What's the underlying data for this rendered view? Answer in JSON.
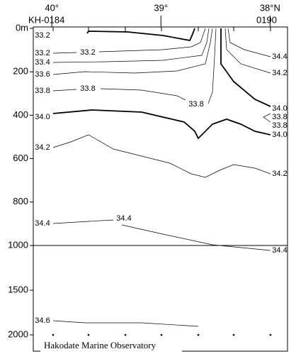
{
  "chart_data": {
    "type": "contour",
    "xlim": [
      40.17,
      37.84
    ],
    "xticks": [
      {
        "value": 40,
        "label": "40°"
      },
      {
        "value": 39,
        "label": "39°"
      },
      {
        "value": 38,
        "label": "38°N"
      }
    ],
    "station_labels": [
      "KH-0184",
      "0190"
    ],
    "ylim": [
      0,
      2000
    ],
    "ysplit": 1000,
    "yticks": [
      {
        "value": 0,
        "label": "0m"
      },
      200,
      400,
      600,
      800,
      1000,
      1500,
      2000
    ],
    "levels": [
      33.2,
      33.4,
      33.6,
      33.8,
      {
        "value": 34,
        "label": "34.0"
      },
      34.2,
      34.4,
      34.6
    ],
    "footer": "Hakodate Marine Observatory"
  }
}
